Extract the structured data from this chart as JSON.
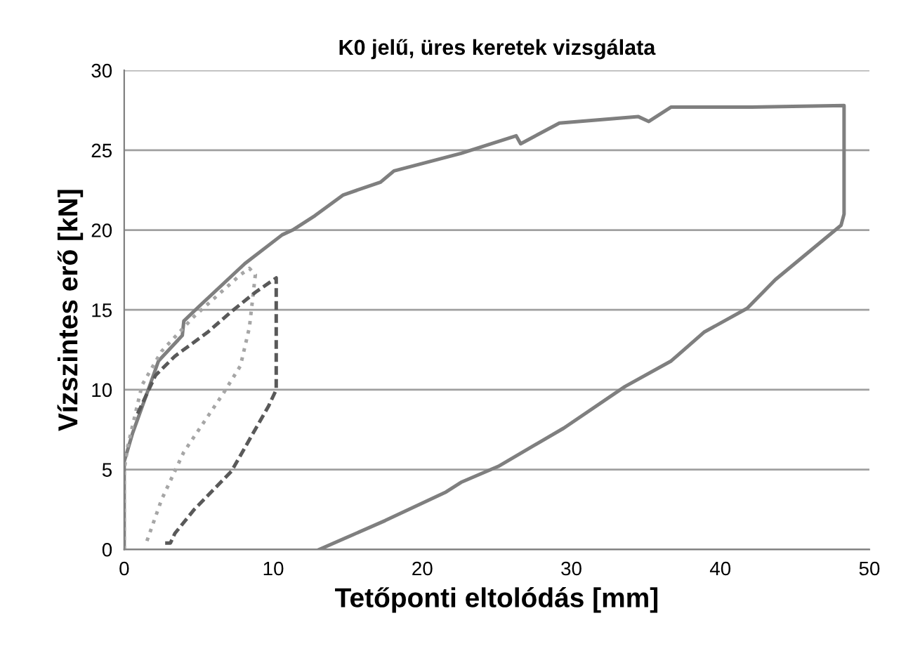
{
  "chart_data": {
    "type": "line",
    "title": "K0 jelű, üres keretek vizsgálata",
    "xlabel": "Tetőponti eltolódás [mm]",
    "ylabel": "Vízszintes erő [kN]",
    "xlim": [
      0,
      50
    ],
    "xticks": [
      0,
      10,
      20,
      30,
      40,
      50
    ],
    "ylim": [
      0,
      30
    ],
    "yticks": [
      0,
      5,
      10,
      15,
      20,
      25,
      30
    ],
    "grid": "y",
    "legend": false,
    "series": [
      {
        "color": "#7f7f7f",
        "line_style": "solid",
        "x": [
          0,
          0,
          0.57,
          1.5,
          2.3,
          3.9,
          4.0,
          5.0,
          8.1,
          10.6,
          11.3,
          12.8,
          14.7,
          17.2,
          18.1,
          22.6,
          26.3,
          26.6,
          29.2,
          34.5,
          35.2,
          36.7,
          42.1,
          48.3,
          48.3,
          48.1,
          43.7,
          41.8,
          38.9,
          36.7,
          33.6,
          29.5,
          25.1,
          22.6,
          21.6,
          17.5,
          13.1
        ],
        "values": [
          0,
          5.5,
          7.3,
          9.7,
          11.8,
          13.4,
          14.3,
          15.2,
          17.9,
          19.7,
          20.0,
          20.9,
          22.2,
          23.0,
          23.7,
          24.8,
          25.9,
          25.4,
          26.7,
          27.1,
          26.8,
          27.7,
          27.7,
          27.8,
          21.0,
          20.3,
          16.9,
          15.1,
          13.6,
          11.8,
          10.2,
          7.6,
          5.2,
          4.2,
          3.6,
          1.8,
          0
        ]
      },
      {
        "color": "#a6a6a6",
        "line_style": "dotted",
        "x": [
          0,
          0,
          0.25,
          1.2,
          2.5,
          4.7,
          7.8,
          8.4,
          8.8,
          8.4,
          7.8,
          6.6,
          4.0,
          2.5,
          1.4
        ],
        "values": [
          0,
          5,
          6.5,
          10.3,
          12.4,
          14.6,
          17.2,
          17.6,
          17.2,
          13.9,
          11.5,
          9.7,
          6.1,
          3.1,
          0.2
        ]
      },
      {
        "color": "#595959",
        "line_style": "dashed",
        "x": [
          0.9,
          2.1,
          3.4,
          5.6,
          7.2,
          8.8,
          10.2,
          10.2,
          9.7,
          7.2,
          4.7,
          3.4,
          3.1,
          2.6
        ],
        "values": [
          8.5,
          10.9,
          12.1,
          13.6,
          14.9,
          16.1,
          17.0,
          10.0,
          9.0,
          4.9,
          2.5,
          1.0,
          0.4,
          0.4
        ]
      }
    ]
  }
}
